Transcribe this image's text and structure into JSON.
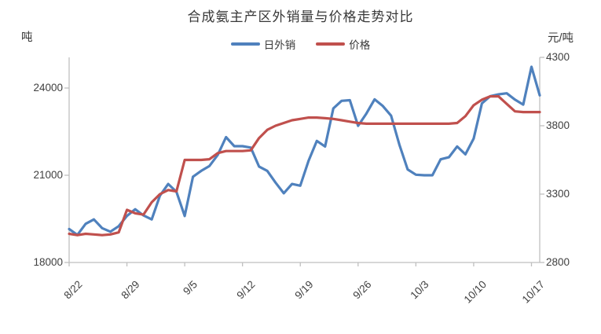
{
  "title": "合成氨主产区外销量与价格走势对比",
  "left_axis_unit": "吨",
  "right_axis_unit": "元/吨",
  "colors": {
    "sales": "#4F81BD",
    "price": "#C0504D",
    "axis": "#BFBFBF",
    "text": "#404040"
  },
  "legend": {
    "sales_label": "日外销",
    "price_label": "价格"
  },
  "chart_data": {
    "type": "line",
    "title": "合成氨主产区外销量与价格走势对比",
    "grid": false,
    "legend_position": "top",
    "categories": [
      "8/22",
      "8/23",
      "8/24",
      "8/25",
      "8/26",
      "8/27",
      "8/28",
      "8/29",
      "8/30",
      "8/31",
      "9/1",
      "9/2",
      "9/3",
      "9/4",
      "9/5",
      "9/6",
      "9/7",
      "9/8",
      "9/9",
      "9/10",
      "9/11",
      "9/12",
      "9/13",
      "9/14",
      "9/15",
      "9/16",
      "9/17",
      "9/18",
      "9/19",
      "9/20",
      "9/21",
      "9/22",
      "9/23",
      "9/24",
      "9/25",
      "9/26",
      "9/27",
      "9/28",
      "9/29",
      "9/30",
      "10/1",
      "10/2",
      "10/3",
      "10/4",
      "10/5",
      "10/6",
      "10/7",
      "10/8",
      "10/9",
      "10/10",
      "10/11",
      "10/12",
      "10/13",
      "10/14",
      "10/15",
      "10/16",
      "10/17",
      "10/18"
    ],
    "x_tick_labels": [
      "8/22",
      "8/29",
      "9/5",
      "9/12",
      "9/19",
      "9/26",
      "10/3",
      "10/10",
      "10/17"
    ],
    "x_tick_every": 7,
    "left_axis": {
      "unit": "吨",
      "ticks": [
        18000,
        21000,
        24000
      ],
      "min": 18000,
      "max": 25050
    },
    "right_axis": {
      "unit": "元/吨",
      "ticks": [
        2800,
        3300,
        3800,
        4300
      ],
      "min": 2800,
      "max": 4300
    },
    "series": [
      {
        "name": "日外销",
        "axis": "left",
        "color": "#4F81BD",
        "values": [
          19150,
          18950,
          19330,
          19480,
          19180,
          19060,
          19250,
          19600,
          19830,
          19620,
          19480,
          20300,
          20700,
          20430,
          19600,
          20950,
          21150,
          21320,
          21700,
          22310,
          22000,
          22000,
          21950,
          21300,
          21150,
          20750,
          20380,
          20700,
          20640,
          21500,
          22180,
          21990,
          23300,
          23560,
          23580,
          22700,
          23120,
          23610,
          23380,
          23050,
          22050,
          21200,
          21020,
          21000,
          21000,
          21550,
          21620,
          21990,
          21720,
          22260,
          23470,
          23720,
          23780,
          23820,
          23600,
          23430,
          24730,
          23750
        ]
      },
      {
        "name": "价格",
        "axis": "right",
        "color": "#C0504D",
        "values": [
          3010,
          3000,
          3010,
          3005,
          3000,
          3005,
          3020,
          3185,
          3160,
          3150,
          3240,
          3300,
          3330,
          3320,
          3550,
          3550,
          3550,
          3555,
          3600,
          3615,
          3615,
          3615,
          3620,
          3710,
          3770,
          3800,
          3820,
          3840,
          3850,
          3860,
          3860,
          3855,
          3850,
          3840,
          3830,
          3820,
          3815,
          3815,
          3815,
          3815,
          3815,
          3815,
          3815,
          3815,
          3815,
          3815,
          3815,
          3820,
          3870,
          3950,
          3990,
          4015,
          4015,
          3960,
          3905,
          3900,
          3900,
          3900
        ]
      }
    ]
  }
}
